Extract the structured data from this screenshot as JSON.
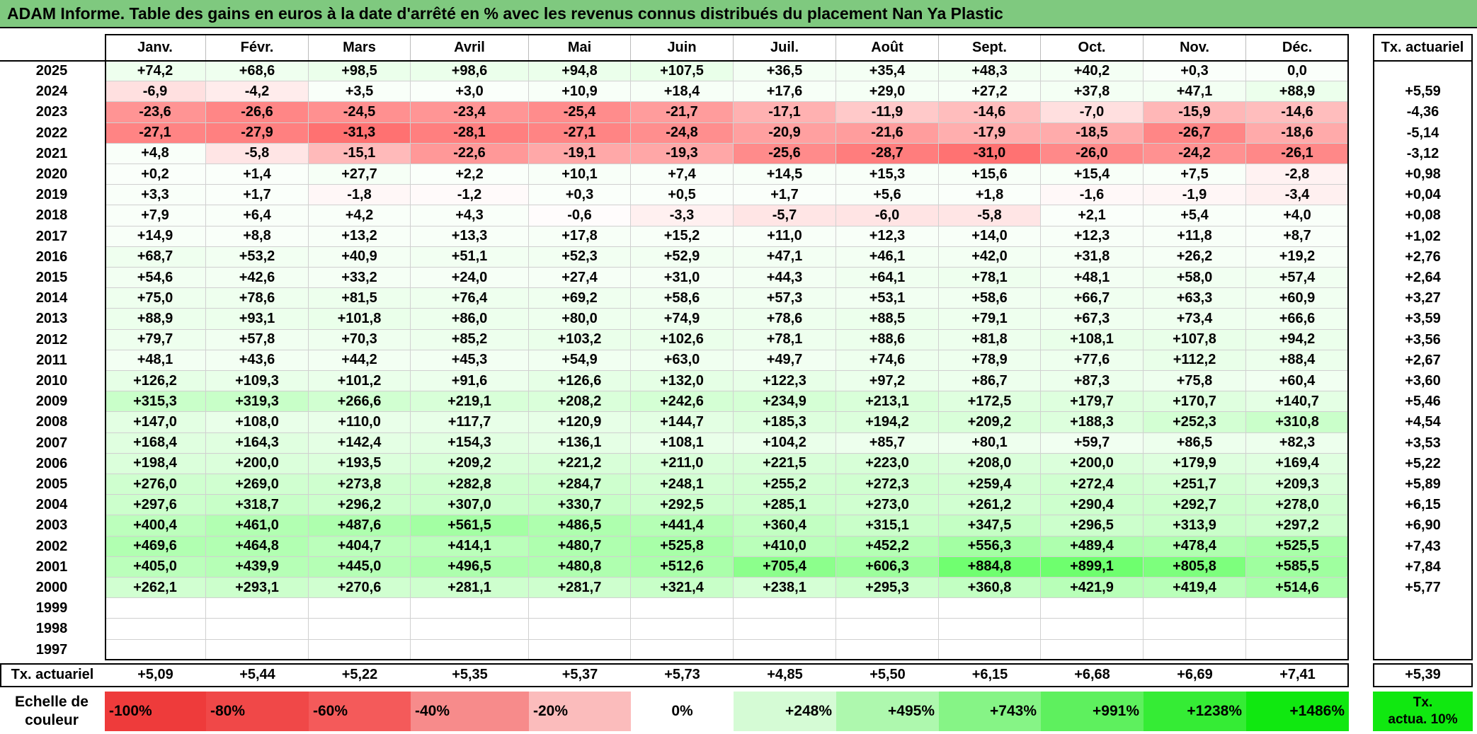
{
  "title": "ADAM Informe. Table des gains en euros à la date d'arrêté en % avec les revenus connus distribués du placement Nan Ya Plastic",
  "months": [
    "Janv.",
    "Févr.",
    "Mars",
    "Avril",
    "Mai",
    "Juin",
    "Juil.",
    "Août",
    "Sept.",
    "Oct.",
    "Nov.",
    "Déc."
  ],
  "actuarial_header": "Tx. actuariel",
  "rows": [
    {
      "year": "2025",
      "values": [
        "+74,2",
        "+68,6",
        "+98,5",
        "+98,6",
        "+94,8",
        "+107,5",
        "+36,5",
        "+35,4",
        "+48,3",
        "+40,2",
        "+0,3",
        "0,0"
      ],
      "rate": ""
    },
    {
      "year": "2024",
      "values": [
        "-6,9",
        "-4,2",
        "+3,5",
        "+3,0",
        "+10,9",
        "+18,4",
        "+17,6",
        "+29,0",
        "+27,2",
        "+37,8",
        "+47,1",
        "+88,9"
      ],
      "rate": "+5,59"
    },
    {
      "year": "2023",
      "values": [
        "-23,6",
        "-26,6",
        "-24,5",
        "-23,4",
        "-25,4",
        "-21,7",
        "-17,1",
        "-11,9",
        "-14,6",
        "-7,0",
        "-15,9",
        "-14,6"
      ],
      "rate": "-4,36"
    },
    {
      "year": "2022",
      "values": [
        "-27,1",
        "-27,9",
        "-31,3",
        "-28,1",
        "-27,1",
        "-24,8",
        "-20,9",
        "-21,6",
        "-17,9",
        "-18,5",
        "-26,7",
        "-18,6"
      ],
      "rate": "-5,14"
    },
    {
      "year": "2021",
      "values": [
        "+4,8",
        "-5,8",
        "-15,1",
        "-22,6",
        "-19,1",
        "-19,3",
        "-25,6",
        "-28,7",
        "-31,0",
        "-26,0",
        "-24,2",
        "-26,1"
      ],
      "rate": "-3,12"
    },
    {
      "year": "2020",
      "values": [
        "+0,2",
        "+1,4",
        "+27,7",
        "+2,2",
        "+10,1",
        "+7,4",
        "+14,5",
        "+15,3",
        "+15,6",
        "+15,4",
        "+7,5",
        "-2,8"
      ],
      "rate": "+0,98"
    },
    {
      "year": "2019",
      "values": [
        "+3,3",
        "+1,7",
        "-1,8",
        "-1,2",
        "+0,3",
        "+0,5",
        "+1,7",
        "+5,6",
        "+1,8",
        "-1,6",
        "-1,9",
        "-3,4"
      ],
      "rate": "+0,04"
    },
    {
      "year": "2018",
      "values": [
        "+7,9",
        "+6,4",
        "+4,2",
        "+4,3",
        "-0,6",
        "-3,3",
        "-5,7",
        "-6,0",
        "-5,8",
        "+2,1",
        "+5,4",
        "+4,0"
      ],
      "rate": "+0,08"
    },
    {
      "year": "2017",
      "values": [
        "+14,9",
        "+8,8",
        "+13,2",
        "+13,3",
        "+17,8",
        "+15,2",
        "+11,0",
        "+12,3",
        "+14,0",
        "+12,3",
        "+11,8",
        "+8,7"
      ],
      "rate": "+1,02"
    },
    {
      "year": "2016",
      "values": [
        "+68,7",
        "+53,2",
        "+40,9",
        "+51,1",
        "+52,3",
        "+52,9",
        "+47,1",
        "+46,1",
        "+42,0",
        "+31,8",
        "+26,2",
        "+19,2"
      ],
      "rate": "+2,76"
    },
    {
      "year": "2015",
      "values": [
        "+54,6",
        "+42,6",
        "+33,2",
        "+24,0",
        "+27,4",
        "+31,0",
        "+44,3",
        "+64,1",
        "+78,1",
        "+48,1",
        "+58,0",
        "+57,4"
      ],
      "rate": "+2,64"
    },
    {
      "year": "2014",
      "values": [
        "+75,0",
        "+78,6",
        "+81,5",
        "+76,4",
        "+69,2",
        "+58,6",
        "+57,3",
        "+53,1",
        "+58,6",
        "+66,7",
        "+63,3",
        "+60,9"
      ],
      "rate": "+3,27"
    },
    {
      "year": "2013",
      "values": [
        "+88,9",
        "+93,1",
        "+101,8",
        "+86,0",
        "+80,0",
        "+74,9",
        "+78,6",
        "+88,5",
        "+79,1",
        "+67,3",
        "+73,4",
        "+66,6"
      ],
      "rate": "+3,59"
    },
    {
      "year": "2012",
      "values": [
        "+79,7",
        "+57,8",
        "+70,3",
        "+85,2",
        "+103,2",
        "+102,6",
        "+78,1",
        "+88,6",
        "+81,8",
        "+108,1",
        "+107,8",
        "+94,2"
      ],
      "rate": "+3,56"
    },
    {
      "year": "2011",
      "values": [
        "+48,1",
        "+43,6",
        "+44,2",
        "+45,3",
        "+54,9",
        "+63,0",
        "+49,7",
        "+74,6",
        "+78,9",
        "+77,6",
        "+112,2",
        "+88,4"
      ],
      "rate": "+2,67"
    },
    {
      "year": "2010",
      "values": [
        "+126,2",
        "+109,3",
        "+101,2",
        "+91,6",
        "+126,6",
        "+132,0",
        "+122,3",
        "+97,2",
        "+86,7",
        "+87,3",
        "+75,8",
        "+60,4"
      ],
      "rate": "+3,60"
    },
    {
      "year": "2009",
      "values": [
        "+315,3",
        "+319,3",
        "+266,6",
        "+219,1",
        "+208,2",
        "+242,6",
        "+234,9",
        "+213,1",
        "+172,5",
        "+179,7",
        "+170,7",
        "+140,7"
      ],
      "rate": "+5,46"
    },
    {
      "year": "2008",
      "values": [
        "+147,0",
        "+108,0",
        "+110,0",
        "+117,7",
        "+120,9",
        "+144,7",
        "+185,3",
        "+194,2",
        "+209,2",
        "+188,3",
        "+252,3",
        "+310,8"
      ],
      "rate": "+4,54"
    },
    {
      "year": "2007",
      "values": [
        "+168,4",
        "+164,3",
        "+142,4",
        "+154,3",
        "+136,1",
        "+108,1",
        "+104,2",
        "+85,7",
        "+80,1",
        "+59,7",
        "+86,5",
        "+82,3"
      ],
      "rate": "+3,53"
    },
    {
      "year": "2006",
      "values": [
        "+198,4",
        "+200,0",
        "+193,5",
        "+209,2",
        "+221,2",
        "+211,0",
        "+221,5",
        "+223,0",
        "+208,0",
        "+200,0",
        "+179,9",
        "+169,4"
      ],
      "rate": "+5,22"
    },
    {
      "year": "2005",
      "values": [
        "+276,0",
        "+269,0",
        "+273,8",
        "+282,8",
        "+284,7",
        "+248,1",
        "+255,2",
        "+272,3",
        "+259,4",
        "+272,4",
        "+251,7",
        "+209,3"
      ],
      "rate": "+5,89"
    },
    {
      "year": "2004",
      "values": [
        "+297,6",
        "+318,7",
        "+296,2",
        "+307,0",
        "+330,7",
        "+292,5",
        "+285,1",
        "+273,0",
        "+261,2",
        "+290,4",
        "+292,7",
        "+278,0"
      ],
      "rate": "+6,15"
    },
    {
      "year": "2003",
      "values": [
        "+400,4",
        "+461,0",
        "+487,6",
        "+561,5",
        "+486,5",
        "+441,4",
        "+360,4",
        "+315,1",
        "+347,5",
        "+296,5",
        "+313,9",
        "+297,2"
      ],
      "rate": "+6,90"
    },
    {
      "year": "2002",
      "values": [
        "+469,6",
        "+464,8",
        "+404,7",
        "+414,1",
        "+480,7",
        "+525,8",
        "+410,0",
        "+452,2",
        "+556,3",
        "+489,4",
        "+478,4",
        "+525,5"
      ],
      "rate": "+7,43"
    },
    {
      "year": "2001",
      "values": [
        "+405,0",
        "+439,9",
        "+445,0",
        "+496,5",
        "+480,8",
        "+512,6",
        "+705,4",
        "+606,3",
        "+884,8",
        "+899,1",
        "+805,8",
        "+585,5"
      ],
      "rate": "+7,84"
    },
    {
      "year": "2000",
      "values": [
        "+262,1",
        "+293,1",
        "+270,6",
        "+281,1",
        "+281,7",
        "+321,4",
        "+238,1",
        "+295,3",
        "+360,8",
        "+421,9",
        "+419,4",
        "+514,6"
      ],
      "rate": "+5,77"
    },
    {
      "year": "1999",
      "values": [
        "",
        "",
        "",
        "",
        "",
        "",
        "",
        "",
        "",
        "",
        "",
        ""
      ],
      "rate": ""
    },
    {
      "year": "1998",
      "values": [
        "",
        "",
        "",
        "",
        "",
        "",
        "",
        "",
        "",
        "",
        "",
        ""
      ],
      "rate": ""
    },
    {
      "year": "1997",
      "values": [
        "",
        "",
        "",
        "",
        "",
        "",
        "",
        "",
        "",
        "",
        "",
        ""
      ],
      "rate": ""
    }
  ],
  "footer": {
    "label": "Tx. actuariel",
    "values": [
      "+5,09",
      "+5,44",
      "+5,22",
      "+5,35",
      "+5,37",
      "+5,73",
      "+4,85",
      "+5,50",
      "+6,15",
      "+6,68",
      "+6,69",
      "+7,41"
    ],
    "rate": "+5,39"
  },
  "scale": {
    "label_line1": "Echelle de",
    "label_line2": "couleur",
    "steps": [
      {
        "text": "-100%",
        "color": "#ee3b3b",
        "align": "left"
      },
      {
        "text": "-80%",
        "color": "#f04848",
        "align": "left"
      },
      {
        "text": "-60%",
        "color": "#f45a5a",
        "align": "left"
      },
      {
        "text": "-40%",
        "color": "#f78b8b",
        "align": "left"
      },
      {
        "text": "-20%",
        "color": "#fbbcbc",
        "align": "left"
      },
      {
        "text": "0%",
        "color": "#ffffff",
        "align": "center"
      },
      {
        "text": "+248%",
        "color": "#d5fbd5",
        "align": "right"
      },
      {
        "text": "+495%",
        "color": "#aef8ae",
        "align": "right"
      },
      {
        "text": "+743%",
        "color": "#86f486",
        "align": "right"
      },
      {
        "text": "+991%",
        "color": "#5ef05e",
        "align": "right"
      },
      {
        "text": "+1238%",
        "color": "#35ec35",
        "align": "right"
      },
      {
        "text": "+1486%",
        "color": "#10e810",
        "align": "right"
      }
    ],
    "final_line1": "Tx.",
    "final_line2": "actua. 10%",
    "final_color": "#10e810"
  },
  "colors": {
    "title_bg": "#7fc97f",
    "negative": "#ee3b3b",
    "positive": "#10e810"
  }
}
